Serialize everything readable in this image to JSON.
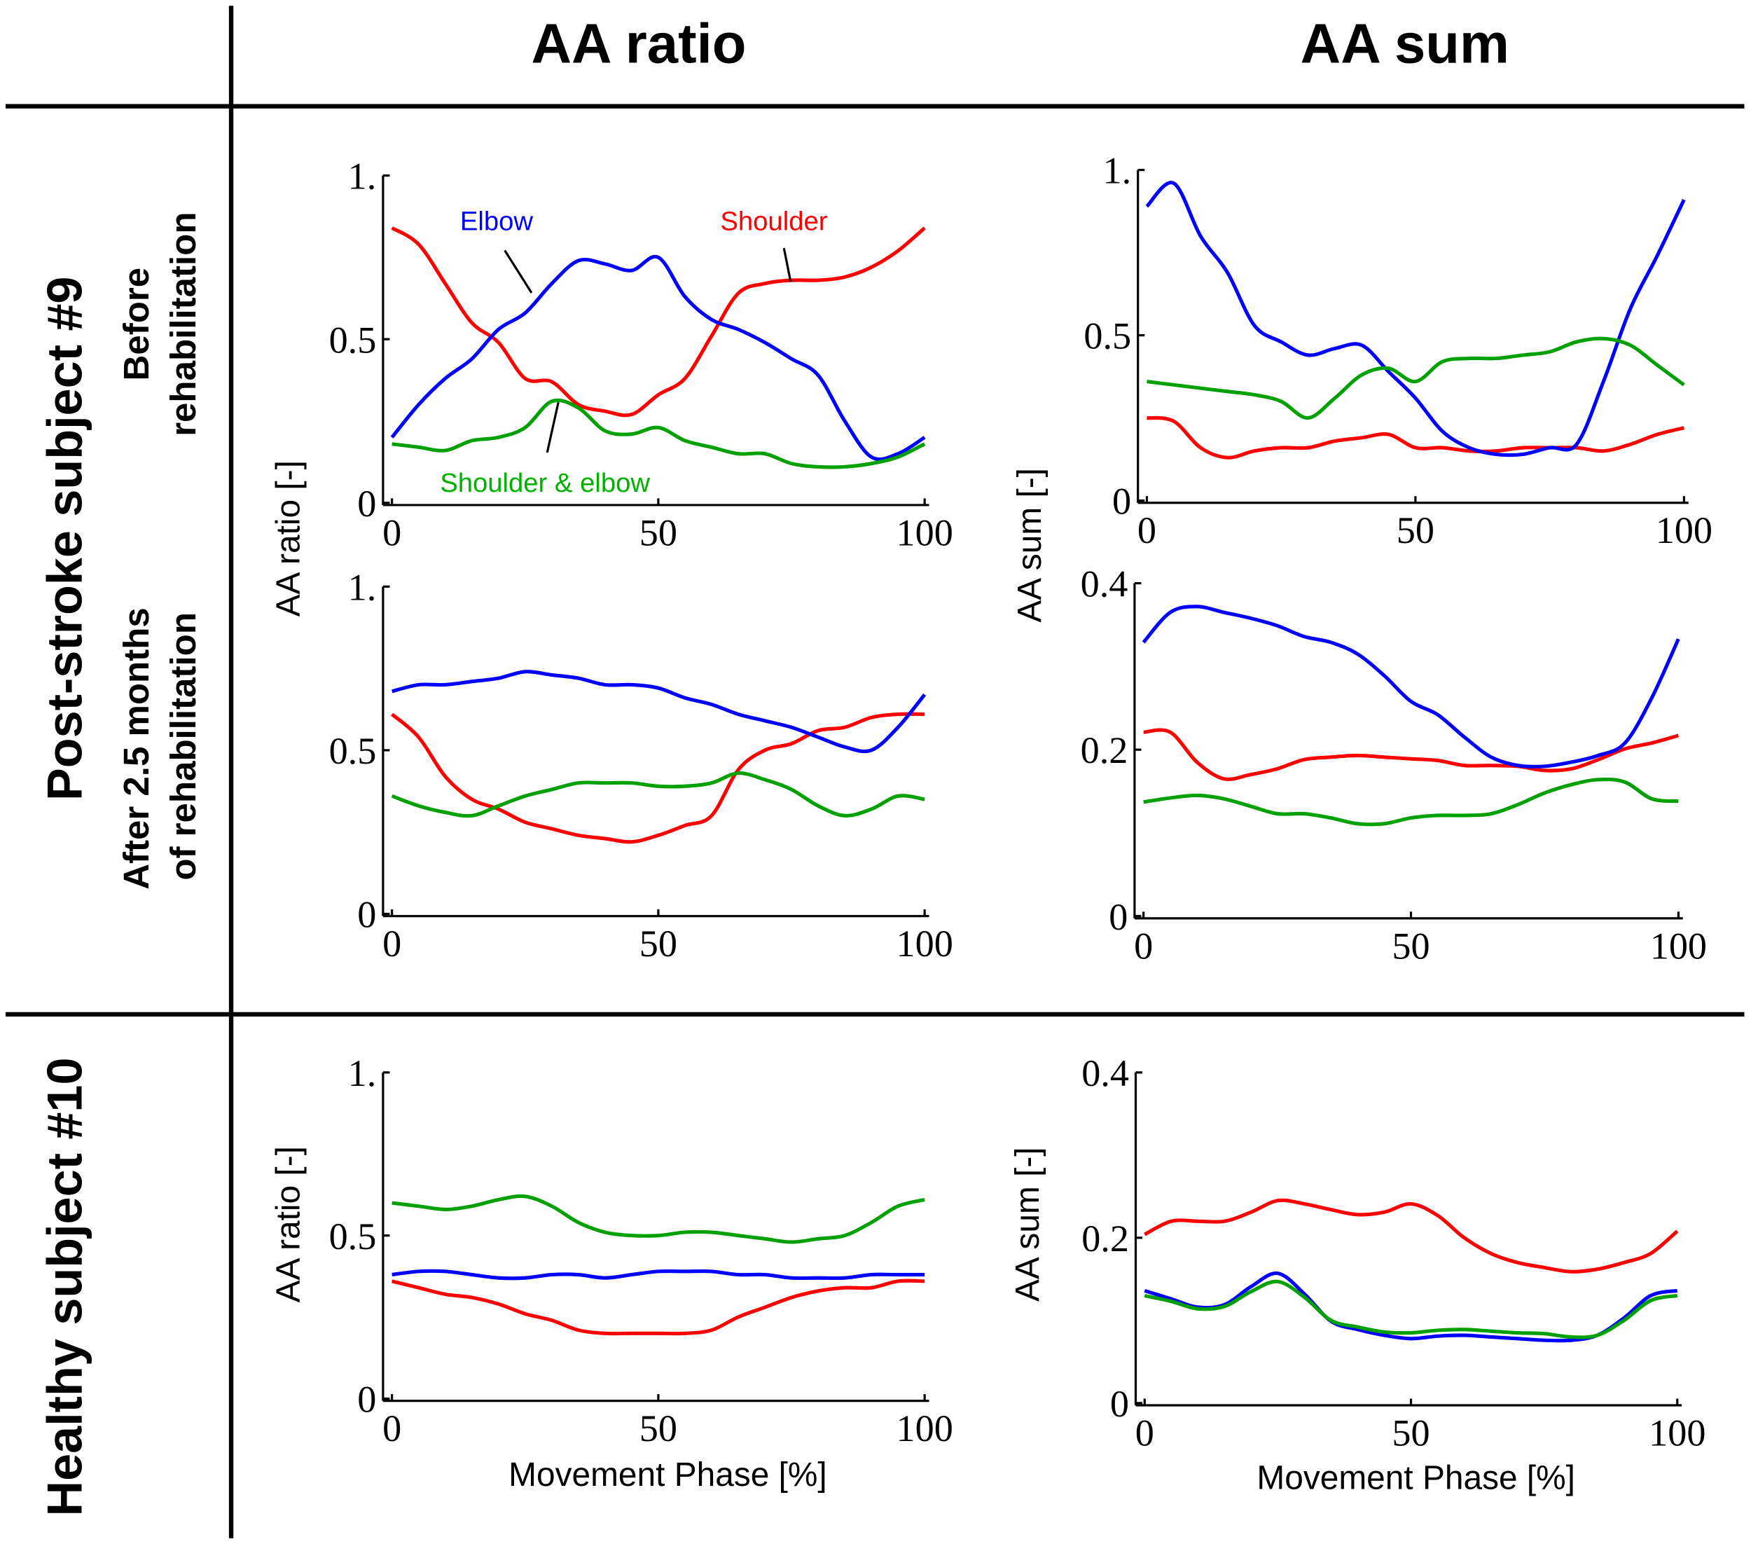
{
  "headers": {
    "col1": "AA ratio",
    "col2": "AA sum"
  },
  "rows": {
    "stroke": "Post-stroke subject #9",
    "before_l1": "Before",
    "before_l2": "rehabilitation",
    "after_l1": "After 2.5 months",
    "after_l2": "of rehabilitation",
    "healthy": "Healthy subject #10"
  },
  "axis_labels": {
    "ratio": "AA ratio [-]",
    "sum": "AA sum [-]",
    "x": "Movement Phase [%]"
  },
  "colors": {
    "shoulder": "#ff0000",
    "elbow": "#0000ff",
    "both": "#00a000"
  },
  "chart_data": [
    {
      "type": "line",
      "title": "AA ratio - Post-stroke #9 before rehabilitation",
      "xlabel": "",
      "ylabel": "AA ratio [-]",
      "xlim": [
        0,
        100
      ],
      "ylim": [
        0,
        1
      ],
      "xticks": [
        "0",
        "50",
        "100"
      ],
      "yticks": [
        "0",
        "0.5",
        "1."
      ],
      "yticks_values": [
        0,
        0.5,
        1
      ],
      "annotations": [
        "Elbow",
        "Shoulder",
        "Shoulder & elbow"
      ],
      "x": [
        0,
        5,
        10,
        15,
        20,
        25,
        30,
        35,
        40,
        45,
        50,
        55,
        60,
        65,
        70,
        75,
        80,
        85,
        90,
        95,
        100
      ],
      "series": [
        {
          "name": "Shoulder",
          "color": "#ff0000",
          "values": [
            0.84,
            0.79,
            0.67,
            0.55,
            0.49,
            0.38,
            0.37,
            0.3,
            0.28,
            0.27,
            0.33,
            0.38,
            0.51,
            0.64,
            0.67,
            0.68,
            0.68,
            0.69,
            0.72,
            0.77,
            0.84
          ]
        },
        {
          "name": "Elbow",
          "color": "#0000ff",
          "values": [
            0.2,
            0.3,
            0.38,
            0.44,
            0.53,
            0.58,
            0.67,
            0.74,
            0.73,
            0.71,
            0.75,
            0.63,
            0.56,
            0.53,
            0.49,
            0.44,
            0.39,
            0.25,
            0.14,
            0.15,
            0.2
          ]
        },
        {
          "name": "Shoulder & elbow",
          "color": "#00a000",
          "values": [
            0.18,
            0.17,
            0.16,
            0.19,
            0.2,
            0.23,
            0.31,
            0.29,
            0.22,
            0.21,
            0.23,
            0.19,
            0.17,
            0.15,
            0.15,
            0.12,
            0.11,
            0.11,
            0.12,
            0.14,
            0.18
          ]
        }
      ]
    },
    {
      "type": "line",
      "title": "AA sum - Post-stroke #9 before rehabilitation",
      "xlabel": "",
      "ylabel": "AA sum [-]",
      "xlim": [
        0,
        100
      ],
      "ylim": [
        0,
        1
      ],
      "xticks": [
        "0",
        "50",
        "100"
      ],
      "yticks": [
        "0",
        "0.5",
        "1."
      ],
      "yticks_values": [
        0,
        0.5,
        1
      ],
      "x": [
        0,
        5,
        10,
        15,
        20,
        25,
        30,
        35,
        40,
        45,
        50,
        55,
        60,
        65,
        70,
        75,
        80,
        85,
        90,
        95,
        100
      ],
      "series": [
        {
          "name": "Shoulder",
          "color": "#ff0000",
          "values": [
            0.25,
            0.24,
            0.16,
            0.13,
            0.15,
            0.16,
            0.16,
            0.18,
            0.19,
            0.2,
            0.16,
            0.16,
            0.15,
            0.15,
            0.16,
            0.16,
            0.16,
            0.15,
            0.17,
            0.2,
            0.22
          ]
        },
        {
          "name": "Elbow",
          "color": "#0000ff",
          "values": [
            0.89,
            0.96,
            0.8,
            0.69,
            0.53,
            0.48,
            0.44,
            0.46,
            0.47,
            0.39,
            0.31,
            0.21,
            0.16,
            0.14,
            0.14,
            0.16,
            0.17,
            0.36,
            0.58,
            0.74,
            0.91
          ]
        },
        {
          "name": "Shoulder & elbow",
          "color": "#00a000",
          "values": [
            0.36,
            0.35,
            0.34,
            0.33,
            0.32,
            0.3,
            0.25,
            0.31,
            0.38,
            0.4,
            0.36,
            0.42,
            0.43,
            0.43,
            0.44,
            0.45,
            0.48,
            0.49,
            0.47,
            0.41,
            0.35
          ]
        }
      ]
    },
    {
      "type": "line",
      "title": "AA ratio - Post-stroke #9 after 2.5 months",
      "xlabel": "",
      "ylabel": "AA ratio [-]",
      "xlim": [
        0,
        100
      ],
      "ylim": [
        0,
        1
      ],
      "xticks": [
        "0",
        "50",
        "100"
      ],
      "yticks": [
        "0",
        "0.5",
        "1."
      ],
      "yticks_values": [
        0,
        0.5,
        1
      ],
      "x": [
        0,
        5,
        10,
        15,
        20,
        25,
        30,
        35,
        40,
        45,
        50,
        55,
        60,
        65,
        70,
        75,
        80,
        85,
        90,
        95,
        100
      ],
      "series": [
        {
          "name": "Shoulder",
          "color": "#ff0000",
          "values": [
            0.61,
            0.54,
            0.42,
            0.35,
            0.32,
            0.28,
            0.26,
            0.24,
            0.23,
            0.22,
            0.24,
            0.27,
            0.3,
            0.44,
            0.5,
            0.52,
            0.56,
            0.57,
            0.6,
            0.61,
            0.61
          ]
        },
        {
          "name": "Elbow",
          "color": "#0000ff",
          "values": [
            0.68,
            0.7,
            0.7,
            0.71,
            0.72,
            0.74,
            0.73,
            0.72,
            0.7,
            0.7,
            0.69,
            0.66,
            0.64,
            0.61,
            0.59,
            0.57,
            0.54,
            0.51,
            0.5,
            0.57,
            0.67
          ]
        },
        {
          "name": "Shoulder & elbow",
          "color": "#00a000",
          "values": [
            0.36,
            0.33,
            0.31,
            0.3,
            0.33,
            0.36,
            0.38,
            0.4,
            0.4,
            0.4,
            0.39,
            0.39,
            0.4,
            0.43,
            0.41,
            0.38,
            0.33,
            0.3,
            0.32,
            0.36,
            0.35
          ]
        }
      ]
    },
    {
      "type": "line",
      "title": "AA sum - Post-stroke #9 after 2.5 months",
      "xlabel": "",
      "ylabel": "AA sum [-]",
      "xlim": [
        0,
        100
      ],
      "ylim": [
        0,
        0.4
      ],
      "xticks": [
        "0",
        "50",
        "100"
      ],
      "yticks": [
        "0",
        "0.2",
        "0.4"
      ],
      "yticks_values": [
        0,
        0.2,
        0.4
      ],
      "x": [
        0,
        5,
        10,
        15,
        20,
        25,
        30,
        35,
        40,
        45,
        50,
        55,
        60,
        65,
        70,
        75,
        80,
        85,
        90,
        95,
        100
      ],
      "series": [
        {
          "name": "Shoulder",
          "color": "#ff0000",
          "values": [
            0.221,
            0.221,
            0.185,
            0.165,
            0.17,
            0.177,
            0.188,
            0.191,
            0.193,
            0.191,
            0.189,
            0.187,
            0.181,
            0.181,
            0.18,
            0.175,
            0.177,
            0.188,
            0.201,
            0.208,
            0.217
          ]
        },
        {
          "name": "Elbow",
          "color": "#0000ff",
          "values": [
            0.329,
            0.365,
            0.372,
            0.365,
            0.358,
            0.349,
            0.336,
            0.329,
            0.315,
            0.289,
            0.258,
            0.242,
            0.215,
            0.191,
            0.181,
            0.18,
            0.185,
            0.193,
            0.208,
            0.262,
            0.333
          ]
        },
        {
          "name": "Shoulder & elbow",
          "color": "#00a000",
          "values": [
            0.137,
            0.142,
            0.145,
            0.141,
            0.132,
            0.123,
            0.123,
            0.118,
            0.111,
            0.111,
            0.118,
            0.121,
            0.121,
            0.123,
            0.134,
            0.148,
            0.158,
            0.164,
            0.161,
            0.141,
            0.138
          ]
        }
      ]
    },
    {
      "type": "line",
      "title": "AA ratio - Healthy #10",
      "xlabel": "Movement Phase [%]",
      "ylabel": "AA ratio [-]",
      "xlim": [
        0,
        100
      ],
      "ylim": [
        0,
        1
      ],
      "xticks": [
        "0",
        "50",
        "100"
      ],
      "yticks": [
        "0",
        "0.5",
        "1."
      ],
      "yticks_values": [
        0,
        0.5,
        1
      ],
      "x": [
        0,
        5,
        10,
        15,
        20,
        25,
        30,
        35,
        40,
        45,
        50,
        55,
        60,
        65,
        70,
        75,
        80,
        85,
        90,
        95,
        100
      ],
      "series": [
        {
          "name": "Shoulder",
          "color": "#ff0000",
          "values": [
            0.36,
            0.34,
            0.32,
            0.31,
            0.29,
            0.26,
            0.24,
            0.21,
            0.2,
            0.2,
            0.2,
            0.2,
            0.21,
            0.25,
            0.28,
            0.31,
            0.33,
            0.34,
            0.34,
            0.36,
            0.36
          ]
        },
        {
          "name": "Elbow",
          "color": "#0000ff",
          "values": [
            0.38,
            0.39,
            0.39,
            0.38,
            0.37,
            0.37,
            0.38,
            0.38,
            0.37,
            0.38,
            0.39,
            0.39,
            0.39,
            0.38,
            0.38,
            0.37,
            0.37,
            0.37,
            0.38,
            0.38,
            0.38
          ]
        },
        {
          "name": "Shoulder & elbow",
          "color": "#00a000",
          "values": [
            0.6,
            0.59,
            0.58,
            0.59,
            0.61,
            0.62,
            0.59,
            0.54,
            0.51,
            0.5,
            0.5,
            0.51,
            0.51,
            0.5,
            0.49,
            0.48,
            0.49,
            0.5,
            0.54,
            0.59,
            0.61
          ]
        }
      ]
    },
    {
      "type": "line",
      "title": "AA sum - Healthy #10",
      "xlabel": "Movement Phase [%]",
      "ylabel": "AA sum [-]",
      "xlim": [
        0,
        100
      ],
      "ylim": [
        0,
        0.4
      ],
      "xticks": [
        "0",
        "50",
        "100"
      ],
      "yticks": [
        "0",
        "0.2",
        "0.4"
      ],
      "yticks_values": [
        0,
        0.2,
        0.4
      ],
      "x": [
        0,
        5,
        10,
        15,
        20,
        25,
        30,
        35,
        40,
        45,
        50,
        55,
        60,
        65,
        70,
        75,
        80,
        85,
        90,
        95,
        100
      ],
      "series": [
        {
          "name": "Shoulder",
          "color": "#ff0000",
          "values": [
            0.204,
            0.22,
            0.22,
            0.22,
            0.231,
            0.245,
            0.241,
            0.234,
            0.228,
            0.231,
            0.241,
            0.227,
            0.2,
            0.181,
            0.17,
            0.164,
            0.159,
            0.162,
            0.17,
            0.181,
            0.208
          ]
        },
        {
          "name": "Elbow",
          "color": "#0000ff",
          "values": [
            0.136,
            0.126,
            0.116,
            0.119,
            0.141,
            0.157,
            0.132,
            0.099,
            0.089,
            0.082,
            0.078,
            0.081,
            0.082,
            0.08,
            0.078,
            0.076,
            0.076,
            0.082,
            0.103,
            0.13,
            0.136
          ]
        },
        {
          "name": "Shoulder & elbow",
          "color": "#00a000",
          "values": [
            0.13,
            0.123,
            0.114,
            0.117,
            0.135,
            0.147,
            0.128,
            0.1,
            0.092,
            0.086,
            0.085,
            0.088,
            0.089,
            0.087,
            0.085,
            0.084,
            0.08,
            0.082,
            0.1,
            0.124,
            0.13
          ]
        }
      ]
    }
  ]
}
